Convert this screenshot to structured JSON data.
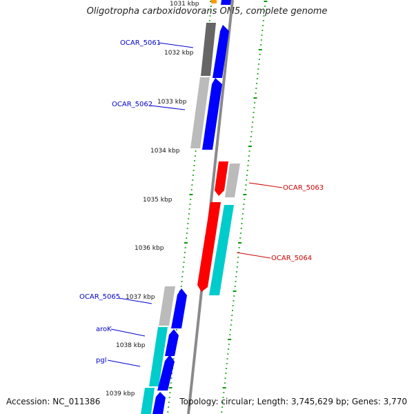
{
  "title": "Oligotropha carboxidovorans OM5, complete genome",
  "accession": "Accession: NC_011386",
  "summary": "Topology: circular; Length: 3,745,629 bp; Genes: 3,770",
  "colors": {
    "background": "#ffffff",
    "backbone": "#8a8a8a",
    "forward_cds": "#0000ff",
    "reverse_cds": "#ff0000",
    "trna_cyan": "#00cccc",
    "orange": "#ff9900",
    "dark_gray": "#666666",
    "light_gray": "#bbbbbb",
    "tick": "#009900",
    "gene_label_forward": "#0000cc",
    "gene_label_reverse": "#cc0000"
  },
  "scale_labels": [
    "1031 kbp",
    "1032 kbp",
    "1033 kbp",
    "1034 kbp",
    "1035 kbp",
    "1036 kbp",
    "1037 kbp",
    "1038 kbp",
    "1039 kbp"
  ],
  "gene_labels": [
    {
      "text": "OCAR_5061",
      "strand": "forward"
    },
    {
      "text": "OCAR_5062",
      "strand": "forward"
    },
    {
      "text": "OCAR_5063",
      "strand": "reverse"
    },
    {
      "text": "OCAR_5064",
      "strand": "reverse"
    },
    {
      "text": "OCAR_5065",
      "strand": "forward"
    },
    {
      "text": "aroK",
      "strand": "forward"
    },
    {
      "text": "pgl",
      "strand": "forward"
    }
  ]
}
